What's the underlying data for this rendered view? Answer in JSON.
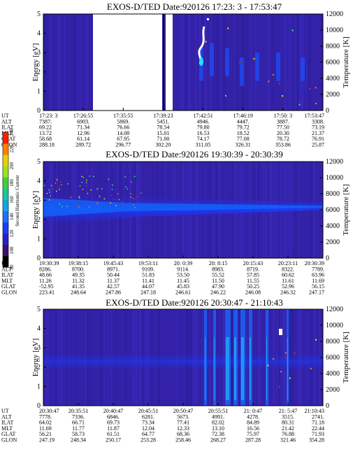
{
  "chart_data": [
    {
      "type": "heatmap",
      "title": "EXOS-D/TED   Date:920126  17:23: 3 - 17:53:47",
      "ylabel": "Energy [eV]",
      "y2label": "Temperature [K]",
      "ylim": [
        0,
        5
      ],
      "y2lim": [
        0,
        12000
      ],
      "yticks": [
        "0",
        "1",
        "2",
        "3",
        "4",
        "5"
      ],
      "y2ticks": [
        "0",
        "2000",
        "4000",
        "6000",
        "8000",
        "10000",
        "12000"
      ],
      "data_gap_minutes": [
        3.4,
        12.5
      ],
      "ephemeris_labels": [
        "UT",
        "ALT",
        "ILAT",
        "MLT",
        "GLAT",
        "GLON"
      ],
      "ephemeris": [
        [
          "17:23: 3",
          "7387.",
          "69.22",
          "13.72",
          "58.68",
          "288.18"
        ],
        [
          "17:26:55",
          "6903.",
          "71.34",
          "12.96",
          "61.14",
          "289.72"
        ],
        [
          "17:35:55",
          "5869.",
          "76.66",
          "14.08",
          "67.95",
          "296.77"
        ],
        [
          "17:39:23",
          "5451.",
          "78.54",
          "15.01",
          "71.00",
          "302.20"
        ],
        [
          "17:42:51",
          "4946.",
          "79.80",
          "16.53",
          "74.17",
          "311.05"
        ],
        [
          "17:46:19",
          "4447.",
          "79.72",
          "18.52",
          "77.08",
          "326.31"
        ],
        [
          "17:50: 3",
          "3887.",
          "77.50",
          "20.30",
          "78.72",
          "353.86"
        ],
        [
          "17:53:47",
          "3308.",
          "73.19",
          "21.37",
          "76.91",
          "25.87"
        ]
      ]
    },
    {
      "type": "heatmap",
      "title": "EXOS-D/TED   Date:920126  19:30:39 - 20:30:39",
      "ylabel": "Energy [eV]",
      "y2label": "Temperature [K]",
      "ylim": [
        0,
        5
      ],
      "y2lim": [
        0,
        12000
      ],
      "yticks": [
        "0",
        "1",
        "2",
        "3",
        "4",
        "5"
      ],
      "y2ticks": [
        "0",
        "2000",
        "4000",
        "6000",
        "8000",
        "10000",
        "12000"
      ],
      "ephemeris_labels": [
        "UT",
        "ALT",
        "ILAT",
        "MLT",
        "GLAT",
        "GLON"
      ],
      "ephemeris": [
        [
          "19:30:39",
          "8286.",
          "48.66",
          "11.26",
          "-52.95",
          "223.41"
        ],
        [
          "19:38:15",
          "8700.",
          "49.35",
          "11.32",
          "41.35",
          "248.64"
        ],
        [
          "19:45:43",
          "8971.",
          "50.44",
          "11.37",
          "42.57",
          "247.86"
        ],
        [
          "19:53:11",
          "9109.",
          "51.83",
          "11.41",
          "44.07",
          "247.18"
        ],
        [
          "20: 0:39",
          "9114.",
          "53.50",
          "11.45",
          "45.83",
          "246.61"
        ],
        [
          "20: 8:15",
          "8983.",
          "55.52",
          "11.50",
          "47.90",
          "246.22"
        ],
        [
          "20:15:43",
          "8719.",
          "57.85",
          "11.55",
          "50.25",
          "246.08"
        ],
        [
          "20:23:11",
          "8322.",
          "60.62",
          "11.61",
          "52.96",
          "246.32"
        ],
        [
          "20:30:39",
          "7789.",
          "63.96",
          "11.69",
          "56.15",
          "247.17"
        ]
      ]
    },
    {
      "type": "heatmap",
      "title": "EXOS-D/TED   Date:920126  20:30:47 - 21:10:43",
      "ylabel": "Energy [eV]",
      "y2label": "Temperature [K]",
      "ylim": [
        0,
        5
      ],
      "y2lim": [
        0,
        12000
      ],
      "yticks": [
        "0",
        "1",
        "2",
        "3",
        "4",
        "5"
      ],
      "y2ticks": [
        "0",
        "2000",
        "4000",
        "6000",
        "8000",
        "10000",
        "12000"
      ],
      "ephemeris_labels": [
        "UT",
        "ALT",
        "ILAT",
        "MLT",
        "GLAT",
        "GLON"
      ],
      "ephemeris": [
        [
          "20:30:47",
          "7778.",
          "64.02",
          "11.69",
          "56.21",
          "247.19"
        ],
        [
          "20:35:51",
          "7336.",
          "66.71",
          "11.77",
          "58.73",
          "248.34"
        ],
        [
          "20:40:47",
          "6846.",
          "69.73",
          "11.87",
          "61.51",
          "250.17"
        ],
        [
          "20:45:51",
          "6281.",
          "73.34",
          "12.04",
          "64.77",
          "253.28"
        ],
        [
          "20:50:47",
          "5673.",
          "77.41",
          "12.33",
          "68.36",
          "258.46"
        ],
        [
          "20:55:51",
          "4991.",
          "82.02",
          "13.10",
          "72.38",
          "268.27"
        ],
        [
          "21: 0:47",
          "4278.",
          "84.89",
          "16.56",
          "75.97",
          "287.28"
        ],
        [
          "21: 5:47",
          "3515.",
          "80.31",
          "21.42",
          "76.88",
          "321.46"
        ],
        [
          "21:10:43",
          "2741.",
          "71.18",
          "22.44",
          "71.93",
          "354.28"
        ]
      ]
    }
  ],
  "colorbar": {
    "label": "Second Harmonic Current",
    "ticks": [
      "80",
      "100",
      "120",
      "140",
      "160",
      "180",
      "200",
      "220",
      "240"
    ],
    "colors": [
      "#000000",
      "#3a1070",
      "#2a20c8",
      "#1640ff",
      "#1e70ff",
      "#10a8e0",
      "#18c8a0",
      "#40d040",
      "#a0e020",
      "#e8d000",
      "#ff8000",
      "#ff2000"
    ]
  }
}
